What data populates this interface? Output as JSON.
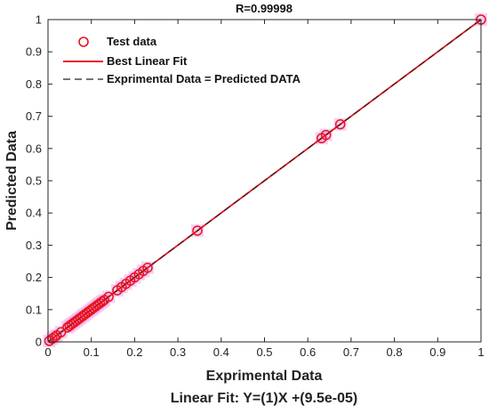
{
  "chart_data": {
    "type": "scatter",
    "title": "R=0.99998",
    "xlabel": "Exprimental Data",
    "ylabel": "Predicted Data",
    "subtitle": "Linear Fit: Y=(1)X +(9.5e-05)",
    "xlim": [
      0,
      1
    ],
    "ylim": [
      0,
      1
    ],
    "xticks": [
      0,
      0.1,
      0.2,
      0.3,
      0.4,
      0.5,
      0.6,
      0.7,
      0.8,
      0.9,
      1
    ],
    "yticks": [
      0,
      0.1,
      0.2,
      0.3,
      0.4,
      0.5,
      0.6,
      0.7,
      0.8,
      0.9,
      1
    ],
    "xtick_labels": [
      "0",
      "0.1",
      "0.2",
      "0.3",
      "0.4",
      "0.5",
      "0.6",
      "0.7",
      "0.8",
      "0.9",
      "1"
    ],
    "ytick_labels": [
      "0",
      "0.1",
      "0.2",
      "0.3",
      "0.4",
      "0.5",
      "0.6",
      "0.7",
      "0.8",
      "0.9",
      "1"
    ],
    "grid": false,
    "legend_position": "top-left",
    "series": [
      {
        "name": "Test data",
        "kind": "markers",
        "color": "#e8141c",
        "points": [
          [
            0.003,
            0.003
          ],
          [
            0.01,
            0.01
          ],
          [
            0.015,
            0.015
          ],
          [
            0.02,
            0.02
          ],
          [
            0.03,
            0.03
          ],
          [
            0.045,
            0.045
          ],
          [
            0.05,
            0.05
          ],
          [
            0.055,
            0.055
          ],
          [
            0.06,
            0.06
          ],
          [
            0.065,
            0.065
          ],
          [
            0.07,
            0.07
          ],
          [
            0.075,
            0.075
          ],
          [
            0.08,
            0.08
          ],
          [
            0.085,
            0.085
          ],
          [
            0.09,
            0.09
          ],
          [
            0.095,
            0.095
          ],
          [
            0.1,
            0.1
          ],
          [
            0.105,
            0.105
          ],
          [
            0.11,
            0.11
          ],
          [
            0.115,
            0.115
          ],
          [
            0.12,
            0.12
          ],
          [
            0.125,
            0.125
          ],
          [
            0.13,
            0.13
          ],
          [
            0.14,
            0.14
          ],
          [
            0.16,
            0.16
          ],
          [
            0.17,
            0.17
          ],
          [
            0.18,
            0.18
          ],
          [
            0.19,
            0.19
          ],
          [
            0.2,
            0.2
          ],
          [
            0.21,
            0.21
          ],
          [
            0.22,
            0.22
          ],
          [
            0.23,
            0.23
          ],
          [
            0.345,
            0.345
          ],
          [
            0.632,
            0.632
          ],
          [
            0.642,
            0.642
          ],
          [
            0.675,
            0.675
          ],
          [
            1.0,
            1.0
          ]
        ]
      },
      {
        "name": "Best Linear Fit",
        "kind": "line",
        "color": "#e8141c",
        "slope": 1,
        "intercept": 9.5e-05
      },
      {
        "name": "Exprimental Data = Predicted DATA",
        "kind": "dashed-line",
        "color": "#222222",
        "slope": 1,
        "intercept": 0
      }
    ]
  }
}
